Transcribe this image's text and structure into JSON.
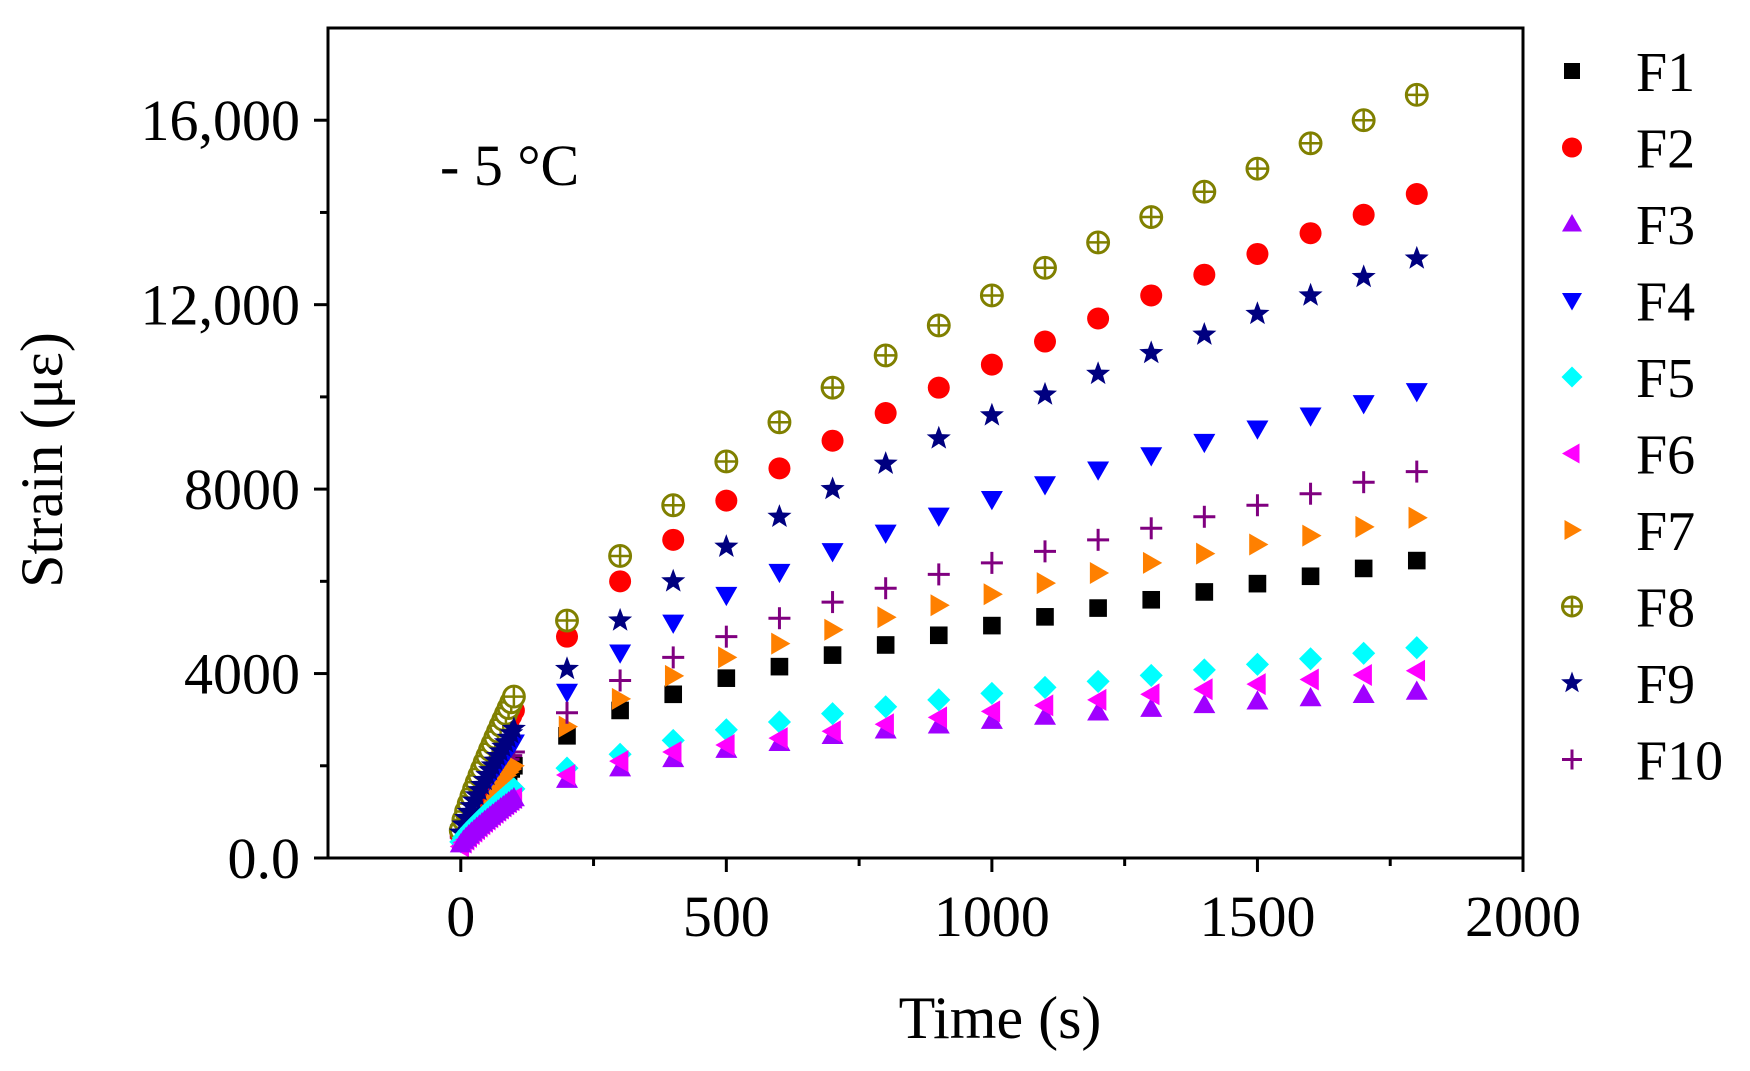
{
  "chart_data": {
    "type": "scatter",
    "title": "",
    "annotation": "- 5 °C",
    "xlabel": "Time (s)",
    "ylabel": "Strain (με)",
    "xlim": [
      -250,
      2000
    ],
    "ylim": [
      0,
      18000
    ],
    "x_ticks": [
      0,
      500,
      1000,
      1500,
      2000
    ],
    "x_tick_labels": [
      "0",
      "500",
      "1000",
      "1500",
      "2000"
    ],
    "x_minor_step": 250,
    "y_ticks": [
      0,
      4000,
      8000,
      12000,
      16000
    ],
    "y_tick_labels": [
      "0.0",
      "4000",
      "8000",
      "12,000",
      "16,000"
    ],
    "y_minor_step": 2000,
    "legend_position": "right",
    "x": [
      200,
      300,
      400,
      500,
      600,
      700,
      800,
      900,
      1000,
      1100,
      1200,
      1300,
      1400,
      1500,
      1600,
      1700,
      1800
    ],
    "early_x": [
      0,
      5,
      10,
      15,
      20,
      25,
      30,
      35,
      40,
      45,
      50,
      55,
      60,
      65,
      70,
      75,
      80,
      85,
      90,
      95,
      100
    ],
    "series": [
      {
        "name": "F1",
        "marker": "square",
        "color": "#000000",
        "start": 400,
        "early_end": 2000,
        "values": [
          2650,
          3200,
          3550,
          3900,
          4150,
          4400,
          4620,
          4830,
          5040,
          5230,
          5420,
          5600,
          5770,
          5950,
          6110,
          6280,
          6450
        ]
      },
      {
        "name": "F2",
        "marker": "circle",
        "color": "#ff0000",
        "start": 500,
        "early_end": 3200,
        "values": [
          4800,
          6000,
          6900,
          7750,
          8450,
          9050,
          9650,
          10200,
          10700,
          11200,
          11700,
          12200,
          12650,
          13100,
          13550,
          13950,
          14400
        ]
      },
      {
        "name": "F3",
        "marker": "triangle-up",
        "color": "#a000ff",
        "start": 300,
        "early_end": 1300,
        "values": [
          1700,
          1950,
          2150,
          2350,
          2500,
          2650,
          2770,
          2880,
          2980,
          3070,
          3160,
          3240,
          3320,
          3400,
          3470,
          3540,
          3610
        ]
      },
      {
        "name": "F4",
        "marker": "triangle-down",
        "color": "#0000ff",
        "start": 550,
        "early_end": 2500,
        "values": [
          3600,
          4450,
          5100,
          5700,
          6200,
          6650,
          7050,
          7420,
          7780,
          8100,
          8420,
          8730,
          9020,
          9310,
          9590,
          9860,
          10120
        ]
      },
      {
        "name": "F5",
        "marker": "diamond",
        "color": "#00ffff",
        "start": 350,
        "early_end": 1500,
        "values": [
          1950,
          2250,
          2550,
          2780,
          2950,
          3130,
          3280,
          3430,
          3570,
          3700,
          3830,
          3960,
          4080,
          4200,
          4320,
          4440,
          4560
        ]
      },
      {
        "name": "F6",
        "marker": "triangle-left",
        "color": "#ff00ff",
        "start": 250,
        "early_end": 1300,
        "values": [
          1800,
          2100,
          2300,
          2450,
          2600,
          2750,
          2900,
          3050,
          3180,
          3310,
          3430,
          3550,
          3660,
          3770,
          3870,
          3970,
          4060
        ]
      },
      {
        "name": "F7",
        "marker": "triangle-right",
        "color": "#ff8000",
        "start": 380,
        "early_end": 2000,
        "values": [
          2850,
          3450,
          3950,
          4350,
          4650,
          4950,
          5220,
          5480,
          5720,
          5960,
          6180,
          6400,
          6600,
          6800,
          6990,
          7180,
          7380
        ]
      },
      {
        "name": "F8",
        "marker": "crossed-circle",
        "color": "#808000",
        "start": 600,
        "early_end": 3500,
        "values": [
          5150,
          6550,
          7650,
          8600,
          9450,
          10200,
          10900,
          11550,
          12200,
          12800,
          13350,
          13900,
          14450,
          14950,
          15500,
          16000,
          16550
        ]
      },
      {
        "name": "F9",
        "marker": "star",
        "color": "#000080",
        "start": 550,
        "early_end": 2800,
        "values": [
          4100,
          5150,
          6000,
          6750,
          7400,
          8000,
          8550,
          9100,
          9600,
          10050,
          10500,
          10950,
          11350,
          11800,
          12200,
          12600,
          13000
        ]
      },
      {
        "name": "F10",
        "marker": "plus",
        "color": "#800080",
        "start": 450,
        "early_end": 2300,
        "values": [
          3150,
          3850,
          4350,
          4800,
          5200,
          5550,
          5850,
          6150,
          6400,
          6650,
          6900,
          7150,
          7400,
          7650,
          7900,
          8150,
          8380
        ]
      }
    ]
  }
}
